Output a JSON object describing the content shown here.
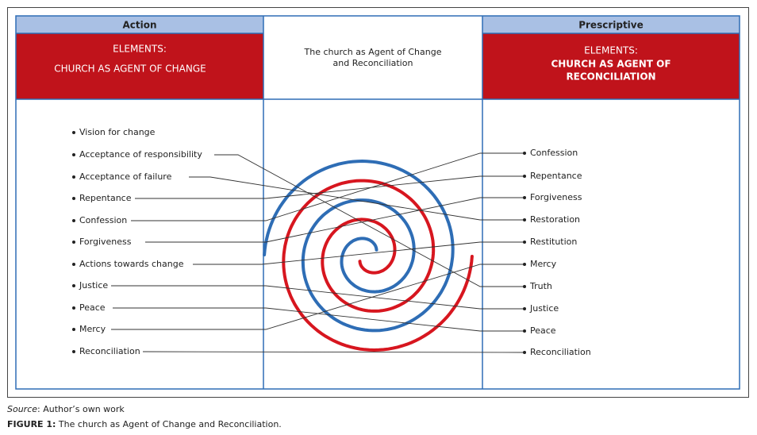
{
  "header": {
    "left_title": "Action",
    "left_box": [
      "ELEMENTS:",
      "CHURCH AS AGENT OF CHANGE"
    ],
    "middle_box": [
      "The church as Agent of Change",
      "and Reconciliation"
    ],
    "right_title": "Prescriptive",
    "right_box": [
      "ELEMENTS:",
      "CHURCH AS AGENT OF",
      "RECONCILIATION"
    ]
  },
  "left_items": [
    "Vision for change",
    "Acceptance of responsibility",
    "Acceptance of failure",
    "Repentance",
    "Confession",
    "Forgiveness",
    "Actions towards change",
    "Justice",
    "Peace",
    "Mercy",
    "Reconciliation"
  ],
  "right_items": [
    "Confession",
    "Repentance",
    "Forgiveness",
    "Restoration",
    "Restitution",
    "Mercy",
    "Truth",
    "Justice",
    "Peace",
    "Reconciliation"
  ],
  "caption": {
    "source_label": "Source",
    "source_text": ": Author’s own work",
    "figure_label": "FIGURE 1:",
    "figure_text": " The church as Agent of Change and Reconciliation."
  }
}
